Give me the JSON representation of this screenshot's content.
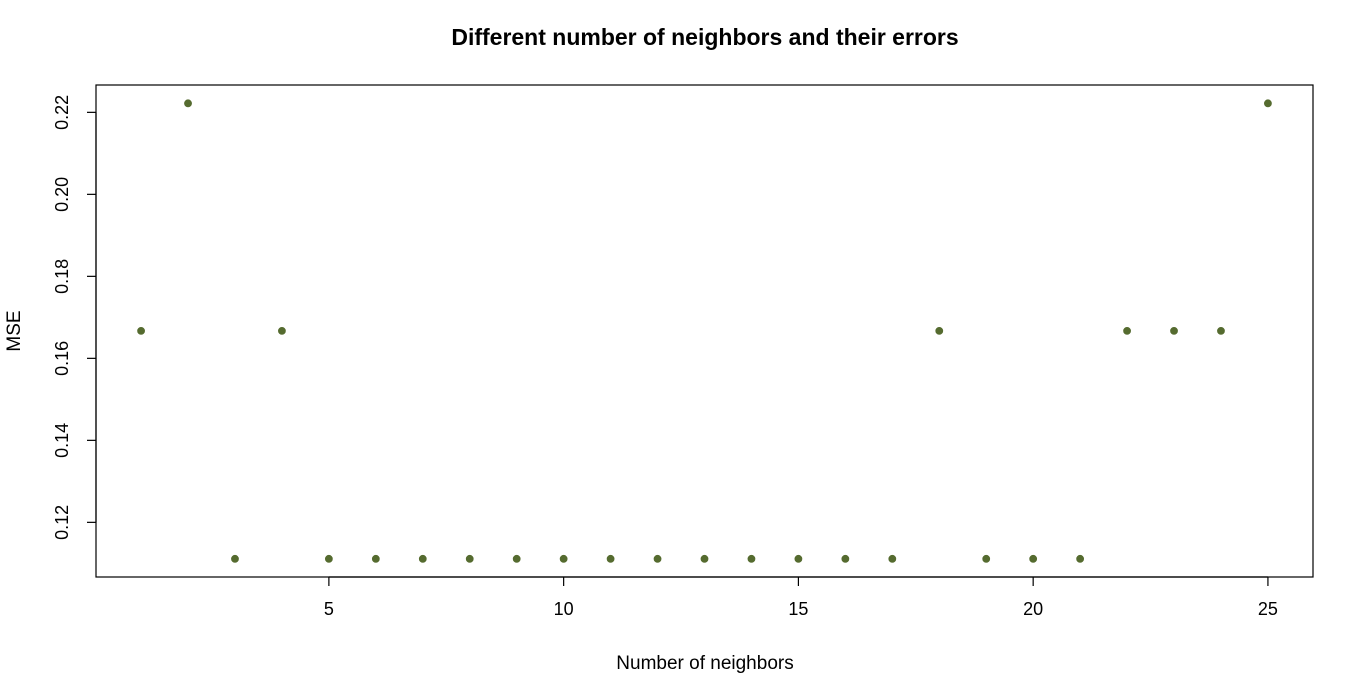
{
  "chart_data": {
    "type": "scatter",
    "title": "Different number of neighbors and their errors",
    "xlabel": "Number of neighbors",
    "ylabel": "MSE",
    "x": [
      1,
      2,
      3,
      4,
      5,
      6,
      7,
      8,
      9,
      10,
      11,
      12,
      13,
      14,
      15,
      16,
      17,
      18,
      19,
      20,
      21,
      22,
      23,
      24,
      25
    ],
    "y": [
      0.1667,
      0.2222,
      0.1111,
      0.1667,
      0.1111,
      0.1111,
      0.1111,
      0.1111,
      0.1111,
      0.1111,
      0.1111,
      0.1111,
      0.1111,
      0.1111,
      0.1111,
      0.1111,
      0.1111,
      0.1667,
      0.1111,
      0.1111,
      0.1111,
      0.1667,
      0.1667,
      0.1667,
      0.2222
    ],
    "xlim": [
      0.04,
      25.96
    ],
    "ylim": [
      0.10667,
      0.22667
    ],
    "x_ticks": [
      {
        "value": 5,
        "label": "5"
      },
      {
        "value": 10,
        "label": "10"
      },
      {
        "value": 15,
        "label": "15"
      },
      {
        "value": 20,
        "label": "20"
      },
      {
        "value": 25,
        "label": "25"
      }
    ],
    "y_ticks": [
      {
        "value": 0.12,
        "label": "0.12"
      },
      {
        "value": 0.14,
        "label": "0.14"
      },
      {
        "value": 0.16,
        "label": "0.16"
      },
      {
        "value": 0.18,
        "label": "0.18"
      },
      {
        "value": 0.2,
        "label": "0.20"
      },
      {
        "value": 0.22,
        "label": "0.22"
      }
    ],
    "grid": false,
    "legend": "none",
    "point_color": "#556B2F",
    "axis_color": "#000000"
  }
}
